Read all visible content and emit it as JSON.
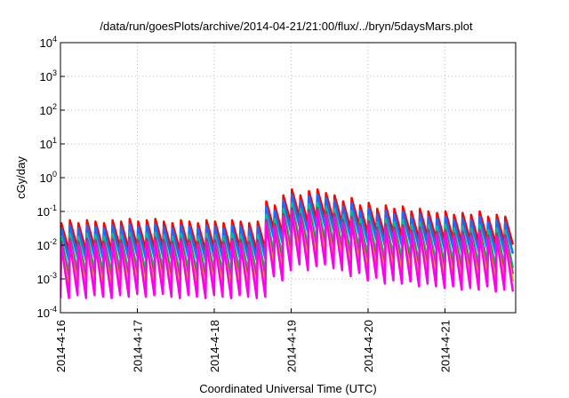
{
  "chart_data": {
    "type": "line",
    "title": "/data/run/goesPlots/archive/2014-04-21/21:00/flux/../bryn/5daysMars.plot",
    "xlabel": "Coordinated Universal Time (UTC)",
    "ylabel": "cGy/day",
    "yscale": "log",
    "ylim": [
      0.0001,
      10000
    ],
    "xlim_days_from_start": [
      0,
      5.93
    ],
    "y_ticks": [
      {
        "base": "10",
        "exp": "-4"
      },
      {
        "base": "10",
        "exp": "-3"
      },
      {
        "base": "10",
        "exp": "-2"
      },
      {
        "base": "10",
        "exp": "-1"
      },
      {
        "base": "10",
        "exp": "0"
      },
      {
        "base": "10",
        "exp": "1"
      },
      {
        "base": "10",
        "exp": "2"
      },
      {
        "base": "10",
        "exp": "3"
      },
      {
        "base": "10",
        "exp": "4"
      }
    ],
    "x_ticks": [
      "2014-4-16",
      "2014-4-17",
      "2014-4-18",
      "2014-4-19",
      "2014-4-20",
      "2014-4-21"
    ],
    "grid": true,
    "sawtooth_period_days": 0.111,
    "reference_peaks": [
      0.045,
      0.055,
      0.045,
      0.055,
      0.05,
      0.045,
      0.055,
      0.05,
      0.06,
      0.05,
      0.055,
      0.06,
      0.05,
      0.045,
      0.055,
      0.05,
      0.045,
      0.055,
      0.05,
      0.045,
      0.055,
      0.05,
      0.045,
      0.05,
      0.2,
      0.15,
      0.3,
      0.45,
      0.3,
      0.4,
      0.45,
      0.35,
      0.3,
      0.2,
      0.25,
      0.15,
      0.18,
      0.12,
      0.15,
      0.12,
      0.14,
      0.1,
      0.12,
      0.1,
      0.09,
      0.1,
      0.08,
      0.09,
      0.08,
      0.1,
      0.07,
      0.08,
      0.07
    ],
    "series": [
      {
        "name": "red",
        "color": "#ff0000",
        "peak_factor": 1.0,
        "trough_factor": 0.15
      },
      {
        "name": "blue",
        "color": "#1a6cff",
        "peak_factor": 0.7,
        "trough_factor": 0.08
      },
      {
        "name": "teal",
        "color": "#10b89a",
        "peak_factor": 0.4,
        "trough_factor": 0.03
      },
      {
        "name": "purple",
        "color": "#9a3a80",
        "peak_factor": 0.28,
        "trough_factor": 0.02
      },
      {
        "name": "orange",
        "color": "#e0a020",
        "peak_factor": 0.22,
        "trough_factor": 0.012
      },
      {
        "name": "magenta",
        "color": "#ff00ee",
        "peak_factor": 0.22,
        "trough_factor": 0.006
      }
    ]
  }
}
